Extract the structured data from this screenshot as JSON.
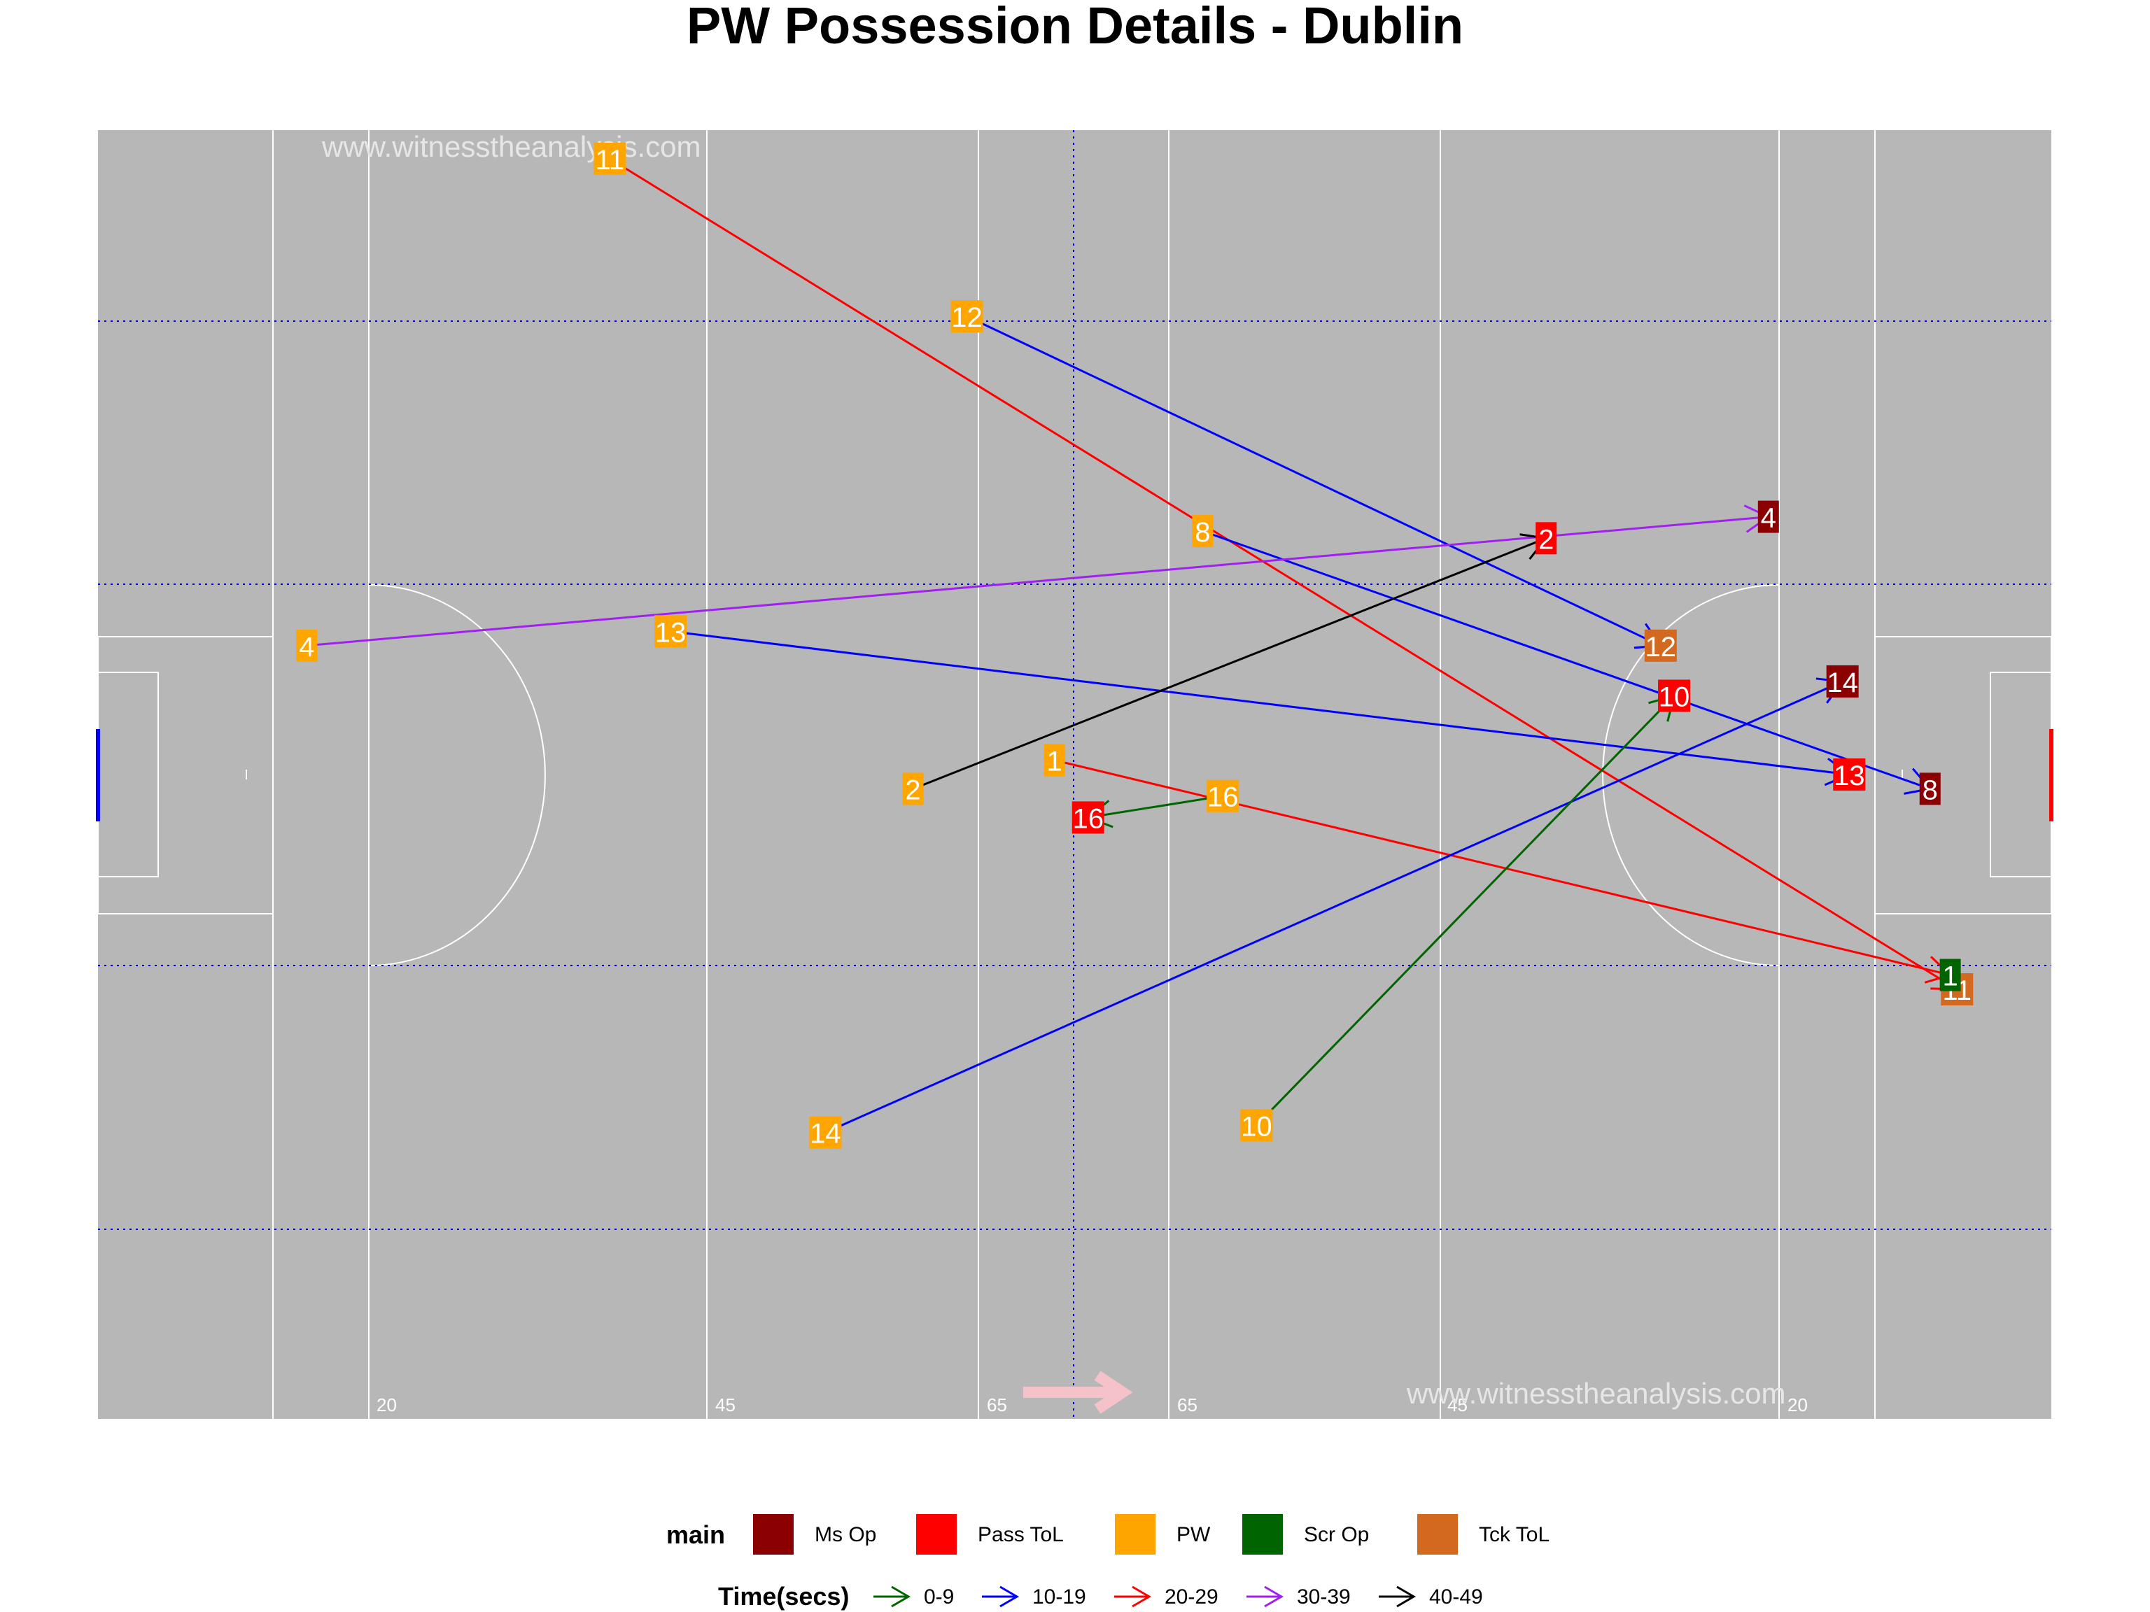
{
  "title": "PW Possession Details - Dublin",
  "watermark": "www.witnesstheanalysis.com",
  "colors": {
    "pitch": "#b7b7b7",
    "pitch_lines": "#ffffff",
    "guide_lines": "#0000cc",
    "direction_arrow": "#f4c2c8"
  },
  "chart_data": {
    "type": "scatter",
    "title": "PW Possession Details - Dublin",
    "pitch": {
      "length_m": 145,
      "width_m": 90,
      "distance_marks": [
        "20",
        "45",
        "65",
        "65",
        "45",
        "20"
      ],
      "attacking_direction": "right"
    },
    "legend_main": {
      "title": "main",
      "entries": [
        {
          "label": "Ms Op",
          "color": "#8b0000"
        },
        {
          "label": "Pass ToL",
          "color": "#ff0000"
        },
        {
          "label": "PW",
          "color": "#ffa500"
        },
        {
          "label": "Scr Op",
          "color": "#006400"
        },
        {
          "label": "Tck ToL",
          "color": "#d2691e"
        }
      ]
    },
    "legend_time": {
      "title": "Time(secs)",
      "entries": [
        {
          "label": "0-9",
          "color": "#006400"
        },
        {
          "label": "10-19",
          "color": "#0000ff"
        },
        {
          "label": "20-29",
          "color": "#ff0000"
        },
        {
          "label": "30-39",
          "color": "#a020f0"
        },
        {
          "label": "40-49",
          "color": "#000000"
        }
      ]
    },
    "possessions": [
      {
        "player": "11",
        "start": [
          38.0,
          88.0
        ],
        "end": [
          138.0,
          30.0
        ],
        "end_outcome": "Tck ToL",
        "time": "20-29"
      },
      {
        "player": "12",
        "start": [
          64.5,
          77.0
        ],
        "end": [
          116.0,
          54.0
        ],
        "end_outcome": "Tck ToL",
        "time": "10-19"
      },
      {
        "player": "8",
        "start": [
          82.0,
          62.0
        ],
        "end": [
          136.0,
          44.0
        ],
        "end_outcome": "Ms Op",
        "time": "10-19"
      },
      {
        "player": "4",
        "start": [
          15.5,
          54.0
        ],
        "end": [
          124.0,
          63.0
        ],
        "end_outcome": "Ms Op",
        "time": "30-39"
      },
      {
        "player": "13",
        "start": [
          42.5,
          55.0
        ],
        "end": [
          130.0,
          45.0
        ],
        "end_outcome": "Pass ToL",
        "time": "10-19"
      },
      {
        "player": "2",
        "start": [
          60.5,
          44.0
        ],
        "end": [
          107.5,
          61.5
        ],
        "end_outcome": "Pass ToL",
        "time": "40-49"
      },
      {
        "player": "1",
        "start": [
          71.0,
          46.0
        ],
        "end": [
          137.5,
          31.0
        ],
        "end_outcome": "Scr Op",
        "time": "20-29"
      },
      {
        "player": "16",
        "start": [
          83.5,
          43.5
        ],
        "end": [
          73.5,
          42.0
        ],
        "end_outcome": "Pass ToL",
        "time": "0-9"
      },
      {
        "player": "14",
        "start": [
          54.0,
          20.0
        ],
        "end": [
          129.5,
          51.5
        ],
        "end_outcome": "Ms Op",
        "time": "10-19"
      },
      {
        "player": "10",
        "start": [
          86.0,
          20.5
        ],
        "end": [
          117.0,
          50.5
        ],
        "end_outcome": "Pass ToL",
        "time": "0-9"
      }
    ]
  }
}
